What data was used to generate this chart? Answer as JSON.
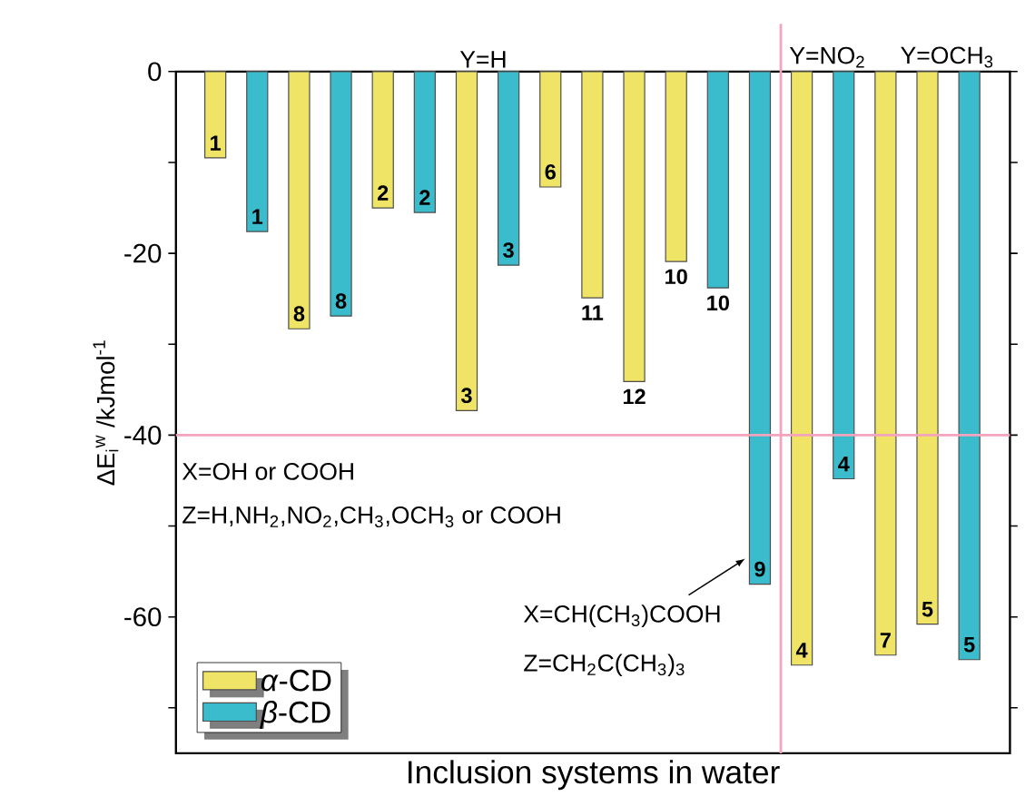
{
  "chart_data": {
    "type": "bar",
    "xlabel": "Inclusion systems in water",
    "ylabel": "ΔE$_{i}$$^{w}$ /kJmol$^{-1}$",
    "categories": [
      "1",
      "1",
      "8",
      "8",
      "2",
      "2",
      "3",
      "3",
      "6",
      "11",
      "12",
      "10",
      "10",
      "9",
      "4",
      "4",
      "7",
      "5",
      "5"
    ],
    "series": [
      {
        "name": "*α*-CD",
        "color": "#f0e466",
        "values": [
          -9.5,
          null,
          -28.3,
          null,
          -15.0,
          null,
          -37.3,
          null,
          -12.7,
          -24.9,
          -34.1,
          -20.9,
          null,
          null,
          -65.3,
          null,
          -64.2,
          -60.8,
          null
        ]
      },
      {
        "name": "*β*-CD",
        "color": "#3bbccc",
        "values": [
          null,
          -17.6,
          null,
          -26.9,
          null,
          -15.5,
          null,
          -21.3,
          null,
          null,
          null,
          null,
          -23.8,
          -56.4,
          null,
          -44.8,
          null,
          null,
          -64.7
        ]
      }
    ],
    "ylim": [
      -75,
      0
    ],
    "yticks": [
      0,
      {
        "value": -10,
        "label": null
      },
      -20,
      {
        "value": -30,
        "label": null
      },
      -40,
      {
        "value": -50,
        "label": null
      },
      -60,
      {
        "value": -70,
        "label": null
      }
    ],
    "ref_lines": [
      {
        "axis": "y",
        "value": -40,
        "color": "#f4a3bd"
      }
    ],
    "annotations": [
      "Y=H",
      "Y=NO$_{2}$",
      "Y=OCH$_{3}$",
      "X=OH or COOH",
      "Z=H,NH$_{2}$,NO$_{2}$,CH$_{3}$,OCH$_{3}$ or COOH",
      {
        "text": "X=CH(CH$_{3}$)COOH",
        "x": "9",
        "y": -56.4
      },
      "Z=CH$_{2}$C(CH$_{3}$)$_{3}$"
    ],
    "legend": "bottom left",
    "grid": false
  }
}
